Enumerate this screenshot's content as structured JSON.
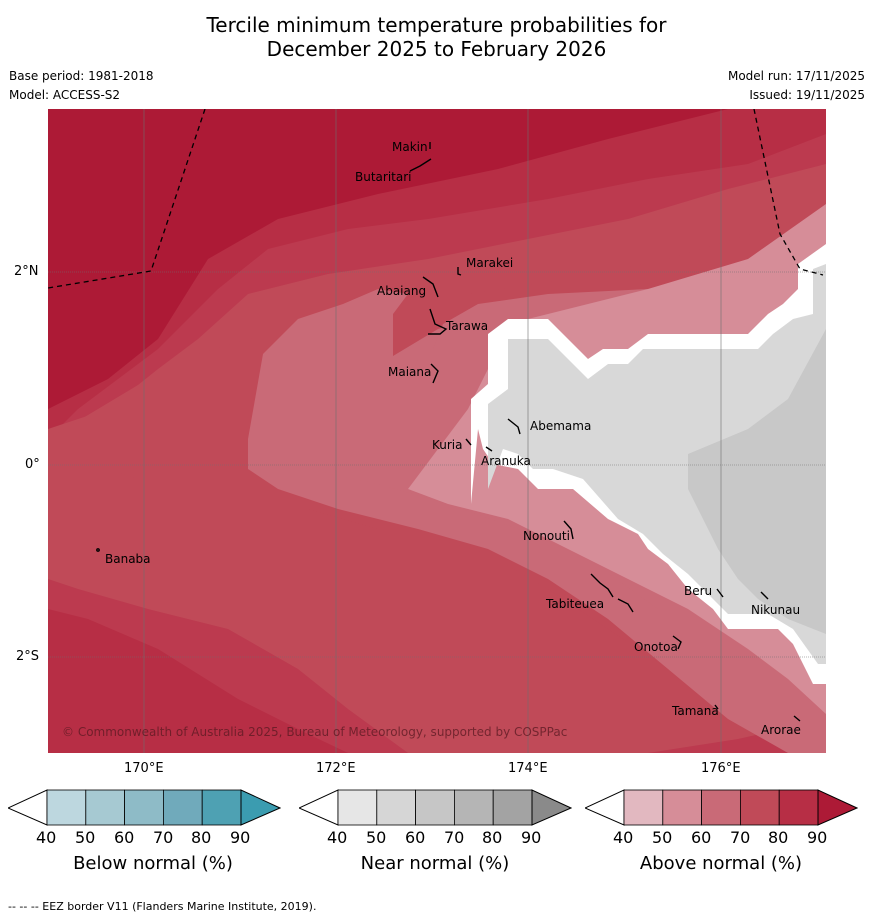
{
  "title": {
    "line1": "Tercile minimum temperature probabilities for",
    "line2": "December 2025 to February 2026"
  },
  "meta": {
    "base_period": "Base period: 1981-2018",
    "model": "Model: ACCESS-S2",
    "model_run": "Model run: 17/11/2025",
    "issued": "Issued: 19/11/2025"
  },
  "map": {
    "copyright": "© Commonwealth of Australia 2025, Bureau of Meteorology, supported by COSPPac",
    "lon_ticks": [
      "170°E",
      "172°E",
      "174°E",
      "176°E"
    ],
    "lat_ticks": [
      "2°N",
      "0°",
      "2°S"
    ],
    "places": [
      {
        "name": "Makin"
      },
      {
        "name": "Butaritari"
      },
      {
        "name": "Marakei"
      },
      {
        "name": "Abaiang"
      },
      {
        "name": "Tarawa"
      },
      {
        "name": "Maiana"
      },
      {
        "name": "Abemama"
      },
      {
        "name": "Kuria"
      },
      {
        "name": "Aranuka"
      },
      {
        "name": "Banaba"
      },
      {
        "name": "Nonouti"
      },
      {
        "name": "Tabiteuea"
      },
      {
        "name": "Beru"
      },
      {
        "name": "Nikunau"
      },
      {
        "name": "Onotoa"
      },
      {
        "name": "Tamana"
      },
      {
        "name": "Arorae"
      }
    ],
    "colors": {
      "above_40": "#e2b8c0",
      "above_50": "#d68d98",
      "above_60": "#c96a77",
      "above_70": "#c04a58",
      "above_80": "#b72e45",
      "above_90": "#ad1a36",
      "near_40": "#d8d8d8",
      "near_50": "#c8c8c8",
      "below_40": "#bdd7df"
    }
  },
  "colorbars": [
    {
      "label": "Below normal (%)",
      "ticks": [
        "40",
        "50",
        "60",
        "70",
        "80",
        "90"
      ],
      "colors": [
        "#bdd7df",
        "#a6c9d2",
        "#8ebbc7",
        "#70aabb",
        "#4ea1b3",
        "#3b9cb0"
      ]
    },
    {
      "label": "Near normal (%)",
      "ticks": [
        "40",
        "50",
        "60",
        "70",
        "80",
        "90"
      ],
      "colors": [
        "#e6e6e6",
        "#d6d6d6",
        "#c6c6c6",
        "#b5b5b5",
        "#a3a3a3",
        "#8a8a8a"
      ]
    },
    {
      "label": "Above normal (%)",
      "ticks": [
        "40",
        "50",
        "60",
        "70",
        "80",
        "90"
      ],
      "colors": [
        "#e2b8c0",
        "#d68d98",
        "#c96a77",
        "#c04a58",
        "#b72e45",
        "#ad1a36"
      ]
    }
  ],
  "footnote": "--  --  -- EEZ border V11 (Flanders Marine Institute, 2019)."
}
